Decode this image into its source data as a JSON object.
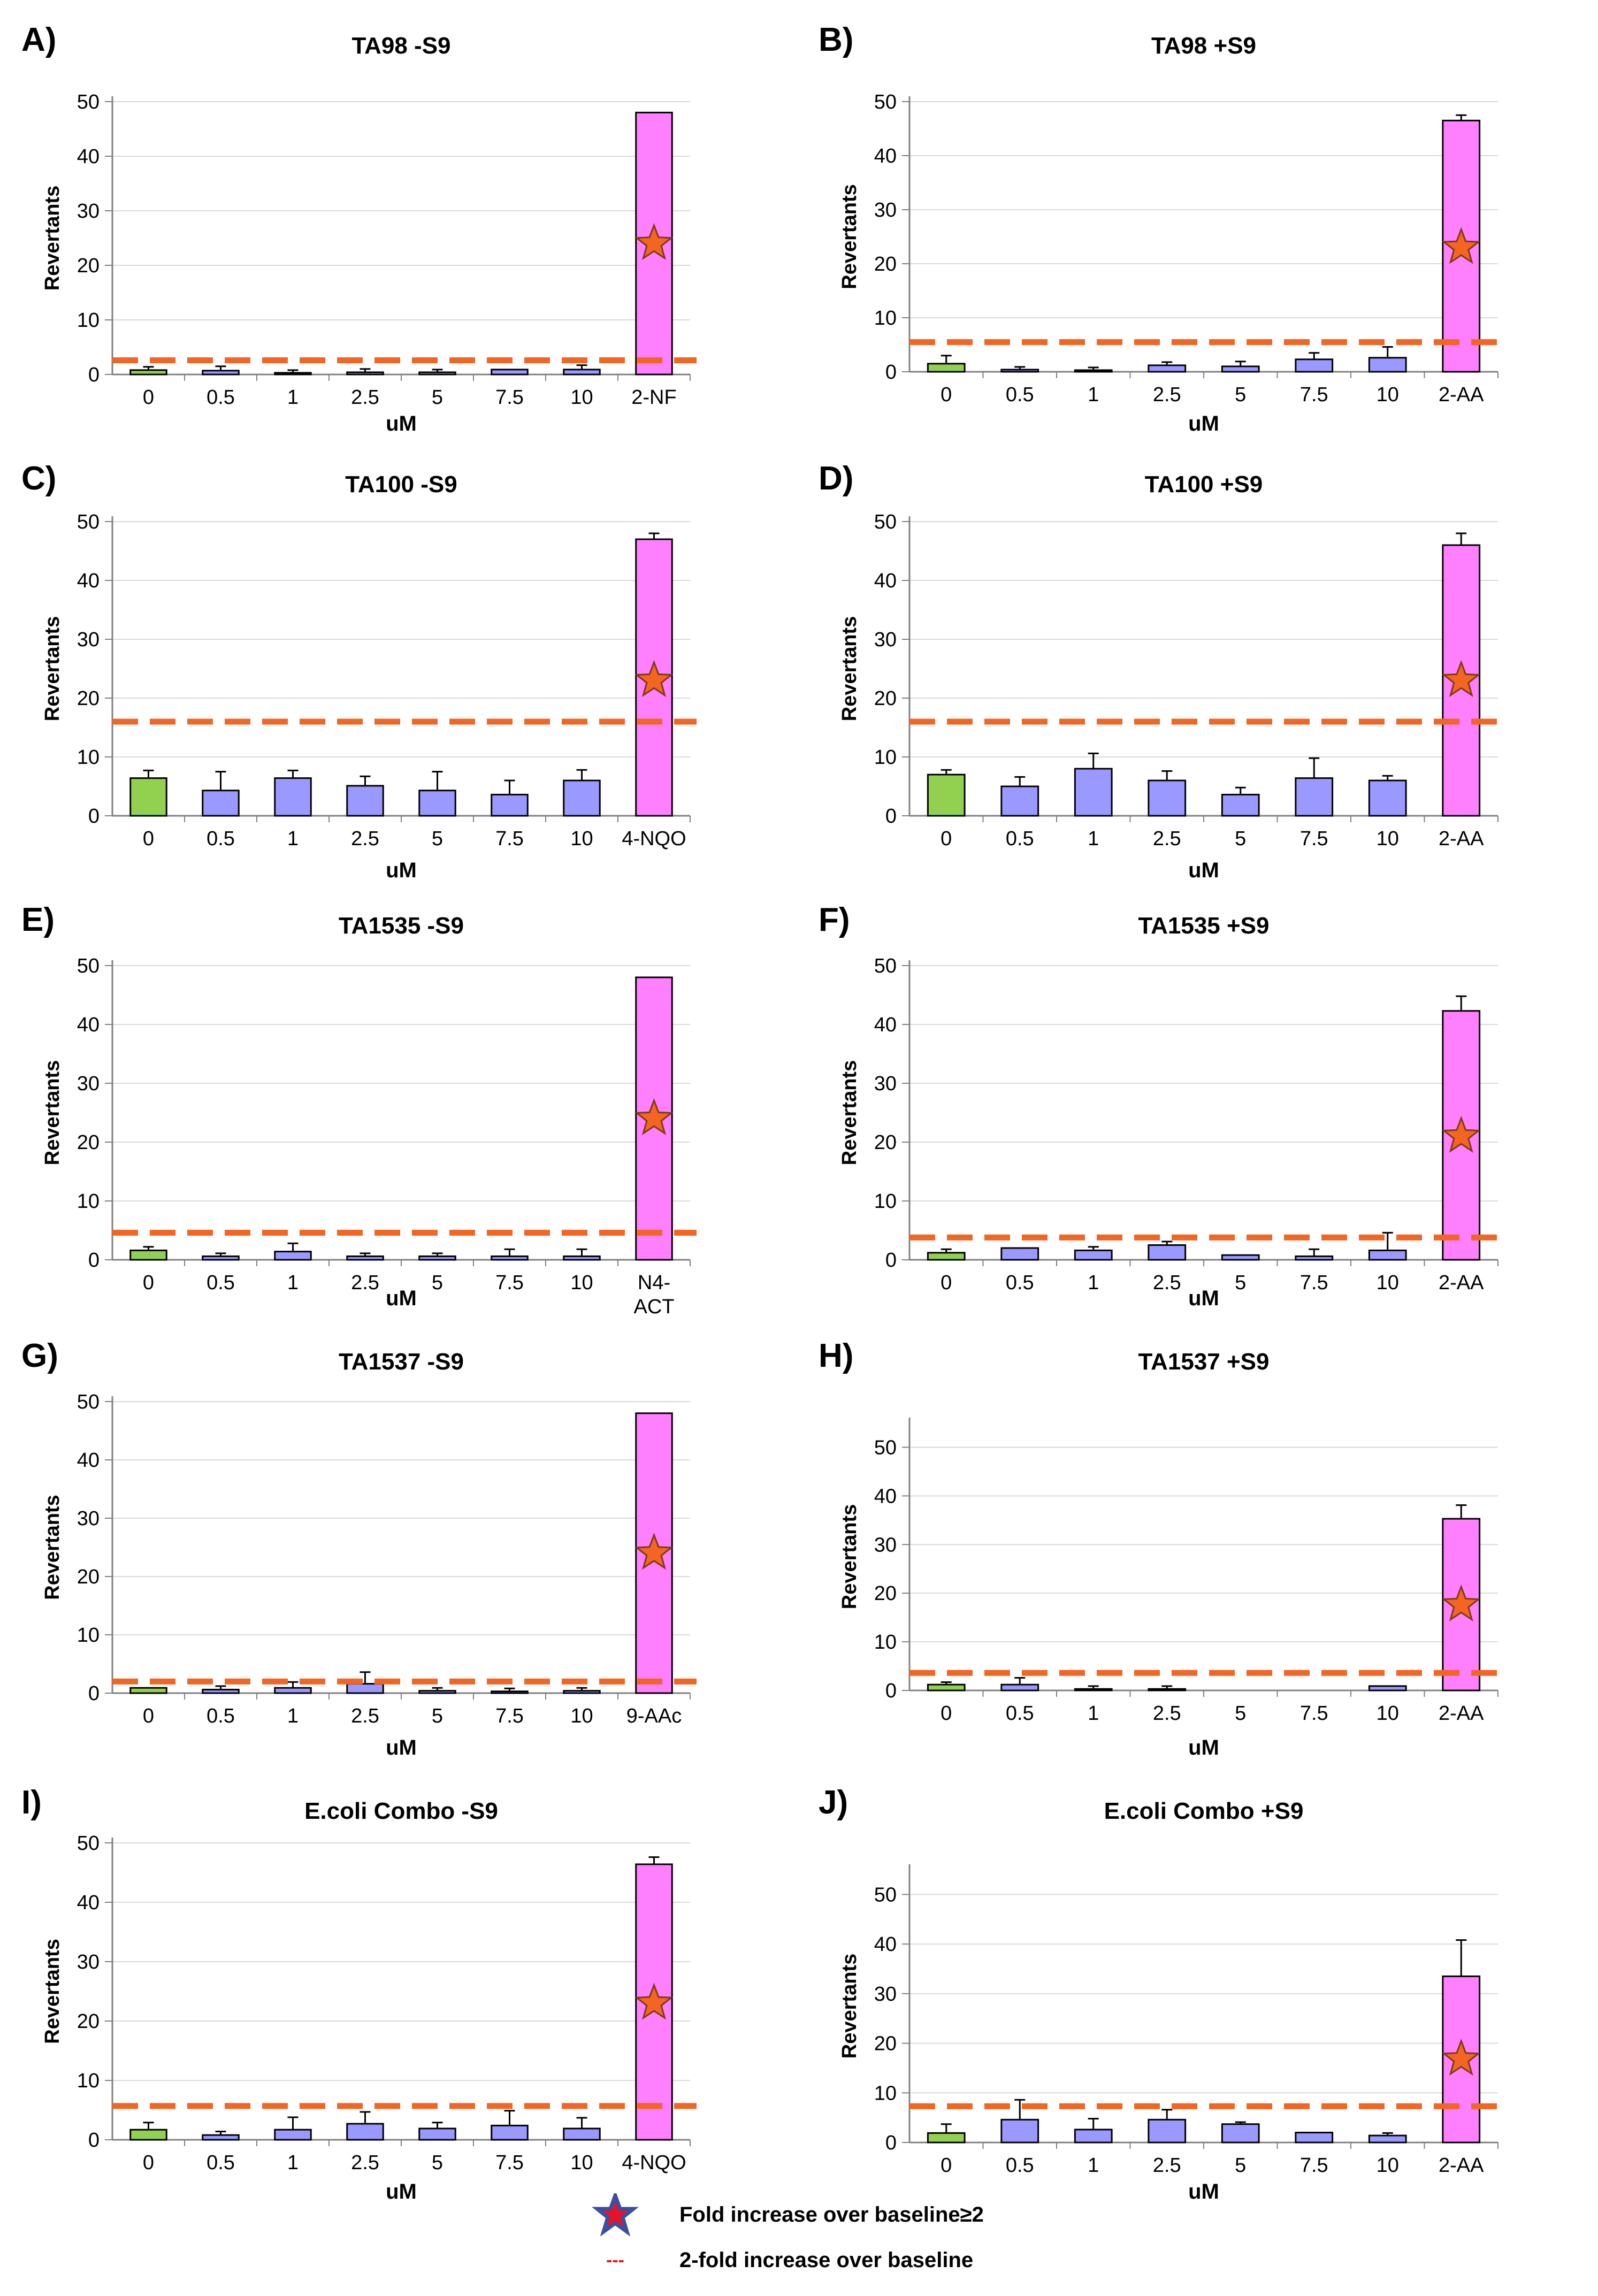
{
  "colors": {
    "control": "#92d050",
    "dose": "#9999ff",
    "positive": "#ff80ff",
    "threshold": "#f26522",
    "star": "#f26522",
    "legend_star_fill": "#e8132a",
    "legend_star_stroke": "#3a4fa0",
    "grid": "#d9d9d9",
    "axis": "#808080"
  },
  "legend": {
    "star_label": "Fold increase over baseline≥2",
    "line_symbol": "---",
    "line_label": "2-fold increase over baseline"
  },
  "chart_data": [
    {
      "type": "bar",
      "panel_label": "A)",
      "title": "TA98 -S9",
      "xlabel": "uM",
      "ylabel": "Revertants",
      "ylim": [
        0,
        50
      ],
      "yticks": [
        0,
        10,
        20,
        30,
        40,
        50
      ],
      "categories": [
        "0",
        "0.5",
        "1",
        "2.5",
        "5",
        "7.5",
        "10",
        "2-NF"
      ],
      "values": [
        0.8,
        0.7,
        0.3,
        0.4,
        0.4,
        0.9,
        0.9,
        48
      ],
      "errors": [
        0.6,
        0.8,
        0.5,
        0.6,
        0.5,
        0,
        0.8,
        0
      ],
      "threshold": 2.6,
      "star_index": 7,
      "star_value": 24
    },
    {
      "type": "bar",
      "panel_label": "B)",
      "title": "TA98 +S9",
      "xlabel": "uM",
      "ylabel": "Revertants",
      "ylim": [
        0,
        50
      ],
      "yticks": [
        0,
        10,
        20,
        30,
        40,
        50
      ],
      "categories": [
        "0",
        "0.5",
        "1",
        "2.5",
        "5",
        "7.5",
        "10",
        "2-AA"
      ],
      "values": [
        1.5,
        0.4,
        0.3,
        1.2,
        1,
        2.3,
        2.6,
        46.5
      ],
      "errors": [
        1.5,
        0.5,
        0.5,
        0.6,
        0.9,
        1.2,
        2,
        1
      ],
      "threshold": 5.5,
      "star_index": 7,
      "star_value": 23
    },
    {
      "type": "bar",
      "panel_label": "C)",
      "title": "TA100 -S9",
      "xlabel": "uM",
      "ylabel": "Revertants",
      "ylim": [
        0,
        50
      ],
      "yticks": [
        0,
        10,
        20,
        30,
        40,
        50
      ],
      "categories": [
        "0",
        "0.5",
        "1",
        "2.5",
        "5",
        "7.5",
        "10",
        "4-NQO"
      ],
      "values": [
        6.4,
        4.3,
        6.4,
        5.1,
        4.3,
        3.6,
        6,
        47
      ],
      "errors": [
        1.3,
        3.2,
        1.3,
        1.6,
        3.2,
        2.4,
        1.8,
        1
      ],
      "threshold": 16,
      "star_index": 7,
      "star_value": 23
    },
    {
      "type": "bar",
      "panel_label": "D)",
      "title": "TA100 +S9",
      "xlabel": "uM",
      "ylabel": "Revertants",
      "ylim": [
        0,
        50
      ],
      "yticks": [
        0,
        10,
        20,
        30,
        40,
        50
      ],
      "categories": [
        "0",
        "0.5",
        "1",
        "2.5",
        "5",
        "7.5",
        "10",
        "2-AA"
      ],
      "values": [
        7,
        5,
        8,
        6,
        3.6,
        6.4,
        6,
        46
      ],
      "errors": [
        0.8,
        1.6,
        2.6,
        1.6,
        1.2,
        3.4,
        0.8,
        2
      ],
      "threshold": 16,
      "star_index": 7,
      "star_value": 23
    },
    {
      "type": "bar",
      "panel_label": "E)",
      "title": "TA1535 -S9",
      "xlabel": "uM",
      "ylabel": "Revertants",
      "ylim": [
        0,
        50
      ],
      "yticks": [
        0,
        10,
        20,
        30,
        40,
        50
      ],
      "categories": [
        "0",
        "0.5",
        "1",
        "2.5",
        "5",
        "7.5",
        "10",
        "N4-ACT"
      ],
      "values": [
        1.6,
        0.6,
        1.4,
        0.6,
        0.6,
        0.6,
        0.6,
        48
      ],
      "errors": [
        0.6,
        0.5,
        1.4,
        0.5,
        0.5,
        1.2,
        1.2,
        0
      ],
      "threshold": 4.6,
      "star_index": 7,
      "star_value": 24
    },
    {
      "type": "bar",
      "panel_label": "F)",
      "title": "TA1535 +S9",
      "xlabel": "uM",
      "ylabel": "Revertants",
      "ylim": [
        0,
        50
      ],
      "yticks": [
        0,
        10,
        20,
        30,
        40,
        50
      ],
      "categories": [
        "0",
        "0.5",
        "1",
        "2.5",
        "5",
        "7.5",
        "10",
        "2-AA"
      ],
      "values": [
        1.2,
        2,
        1.6,
        2.5,
        0.8,
        0.6,
        1.6,
        42.3
      ],
      "errors": [
        0.6,
        0,
        0.6,
        0.6,
        0,
        1.2,
        3,
        2.5
      ],
      "threshold": 3.8,
      "star_index": 7,
      "star_value": 21
    },
    {
      "type": "bar",
      "panel_label": "G)",
      "title": "TA1537 -S9",
      "xlabel": "uM",
      "ylabel": "Revertants",
      "ylim": [
        0,
        50
      ],
      "yticks": [
        0,
        10,
        20,
        30,
        40,
        50
      ],
      "categories": [
        "0",
        "0.5",
        "1",
        "2.5",
        "5",
        "7.5",
        "10",
        "9-AAc"
      ],
      "values": [
        0.9,
        0.6,
        0.9,
        1.6,
        0.4,
        0.3,
        0.4,
        48
      ],
      "errors": [
        0,
        0.6,
        1,
        2,
        0.5,
        0.5,
        0.5,
        0
      ],
      "threshold": 2,
      "star_index": 7,
      "star_value": 24
    },
    {
      "type": "bar",
      "panel_label": "H)",
      "title": "TA1537 +S9",
      "xlabel": "uM",
      "ylabel": "Revertants",
      "ylim": [
        0,
        55
      ],
      "yticks": [
        0,
        10,
        20,
        30,
        40,
        50
      ],
      "categories": [
        "0",
        "0.5",
        "1",
        "2.5",
        "5",
        "7.5",
        "10",
        "2-AA"
      ],
      "values": [
        1.2,
        1.2,
        0.3,
        0.3,
        0,
        0,
        0.9,
        35.3
      ],
      "errors": [
        0.5,
        1.4,
        0.6,
        0.6,
        0,
        0,
        0,
        2.8
      ],
      "threshold": 3.6,
      "star_index": 7,
      "star_value": 17.6
    },
    {
      "type": "bar",
      "panel_label": "I)",
      "title": "E.coli Combo -S9",
      "xlabel": "uM",
      "ylabel": "Revertants",
      "ylim": [
        0,
        50
      ],
      "yticks": [
        0,
        10,
        20,
        30,
        40,
        50
      ],
      "categories": [
        "0",
        "0.5",
        "1",
        "2.5",
        "5",
        "7.5",
        "10",
        "4-NQO"
      ],
      "values": [
        1.7,
        0.8,
        1.7,
        2.7,
        1.9,
        2.4,
        1.9,
        46.4
      ],
      "errors": [
        1.2,
        0.6,
        2.1,
        2,
        1,
        2.5,
        1.8,
        1.2
      ],
      "threshold": 5.7,
      "star_index": 7,
      "star_value": 23
    },
    {
      "type": "bar",
      "panel_label": "J)",
      "title": "E.coli Combo +S9",
      "xlabel": "uM",
      "ylabel": "Revertants",
      "ylim": [
        0,
        55
      ],
      "yticks": [
        0,
        10,
        20,
        30,
        40,
        50
      ],
      "categories": [
        "0",
        "0.5",
        "1",
        "2.5",
        "5",
        "7.5",
        "10",
        "2-AA"
      ],
      "values": [
        1.9,
        4.6,
        2.6,
        4.6,
        3.7,
        2,
        1.4,
        33.5
      ],
      "errors": [
        1.8,
        4,
        2.2,
        2,
        0.4,
        0,
        0.5,
        7.3
      ],
      "threshold": 7.3,
      "star_index": 7,
      "star_value": 16.8
    }
  ]
}
